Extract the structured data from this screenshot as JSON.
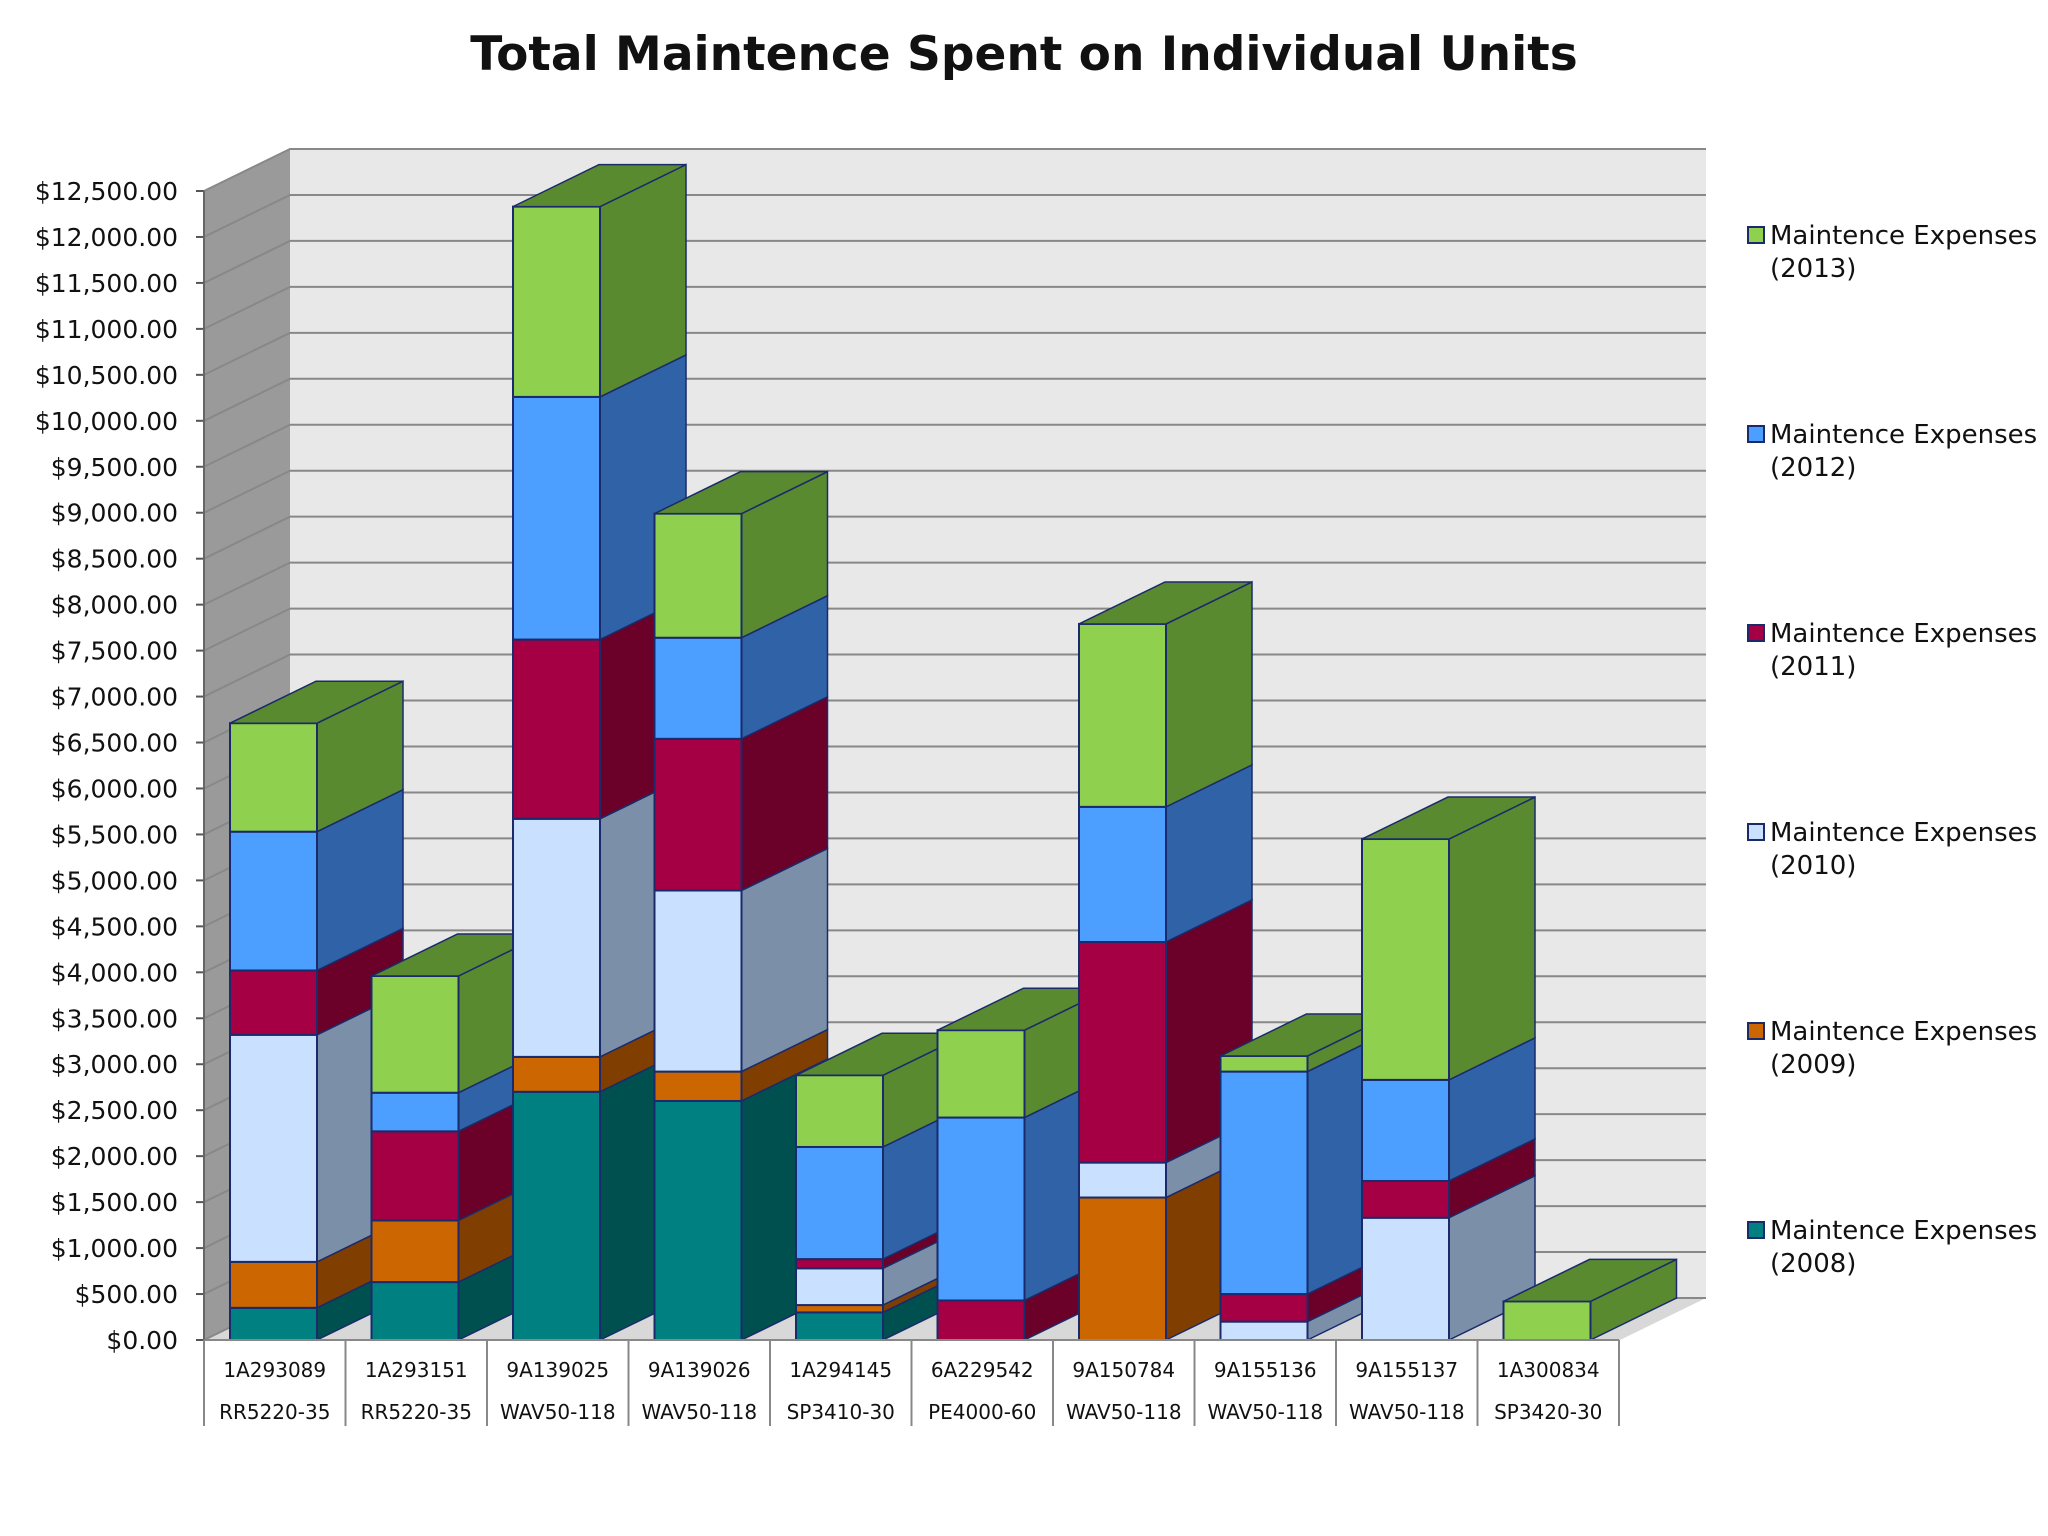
{
  "chart_data": {
    "type": "bar",
    "stacked": true,
    "three_d": true,
    "title": "Total Maintence Spent on Individual Units",
    "xlabel": "",
    "ylabel": "",
    "ylim": [
      0,
      12500
    ],
    "ytick_step": 500,
    "ytick_labels": [
      "$0.00",
      "$500.00",
      "$1,000.00",
      "$1,500.00",
      "$2,000.00",
      "$2,500.00",
      "$3,000.00",
      "$3,500.00",
      "$4,000.00",
      "$4,500.00",
      "$5,000.00",
      "$5,500.00",
      "$6,000.00",
      "$6,500.00",
      "$7,000.00",
      "$7,500.00",
      "$8,000.00",
      "$8,500.00",
      "$9,000.00",
      "$9,500.00",
      "$10,000.00",
      "$10,500.00",
      "$11,000.00",
      "$11,500.00",
      "$12,000.00",
      "$12,500.00"
    ],
    "grid": true,
    "legend_position": "right",
    "categories": [
      {
        "serial": "1A293089",
        "model": "RR5220-35"
      },
      {
        "serial": "1A293151",
        "model": "RR5220-35"
      },
      {
        "serial": "9A139025",
        "model": "WAV50-118"
      },
      {
        "serial": "9A139026",
        "model": "WAV50-118"
      },
      {
        "serial": "1A294145",
        "model": "SP3410-30"
      },
      {
        "serial": "6A229542",
        "model": "PE4000-60"
      },
      {
        "serial": "9A150784",
        "model": "WAV50-118"
      },
      {
        "serial": "9A155136",
        "model": "WAV50-118"
      },
      {
        "serial": "9A155137",
        "model": "WAV50-118"
      },
      {
        "serial": "1A300834",
        "model": "SP3420-30"
      }
    ],
    "series": [
      {
        "name": "Maintence Expenses (2008)",
        "legend_lines": [
          "Maintence Expenses",
          "(2008)"
        ],
        "color": "#008080",
        "side_color": "#005050",
        "values": [
          350,
          630,
          2700,
          2600,
          300,
          0,
          0,
          0,
          0,
          0
        ]
      },
      {
        "name": "Maintence Expenses (2009)",
        "legend_lines": [
          "Maintence Expenses",
          "(2009)"
        ],
        "color": "#cc6600",
        "side_color": "#803f00",
        "values": [
          500,
          670,
          380,
          320,
          80,
          0,
          1550,
          0,
          0,
          0
        ]
      },
      {
        "name": "Maintence Expenses (2010)",
        "legend_lines": [
          "Maintence Expenses",
          "(2010)"
        ],
        "color": "#c9e0ff",
        "side_color": "#7b8fa8",
        "values": [
          2470,
          0,
          2590,
          1970,
          400,
          0,
          380,
          200,
          1330,
          0
        ]
      },
      {
        "name": "Maintence Expenses (2011)",
        "legend_lines": [
          "Maintence Expenses",
          "(2011)"
        ],
        "color": "#a50044",
        "side_color": "#6b0028",
        "values": [
          700,
          970,
          1950,
          1650,
          100,
          430,
          2400,
          300,
          400,
          0
        ]
      },
      {
        "name": "Maintence Expenses (2012)",
        "legend_lines": [
          "Maintence Expenses",
          "(2012)"
        ],
        "color": "#4d9fff",
        "side_color": "#2f62a6",
        "values": [
          1510,
          420,
          2640,
          1100,
          1220,
          1990,
          1470,
          2420,
          1100,
          0
        ]
      },
      {
        "name": "Maintence Expenses (2013)",
        "legend_lines": [
          "Maintence Expenses",
          "(2013)"
        ],
        "color": "#8fd14f",
        "side_color": "#5a8a30",
        "values": [
          1180,
          1270,
          2070,
          1350,
          780,
          950,
          1990,
          170,
          2620,
          420
        ]
      }
    ],
    "legend_order": [
      "Maintence Expenses (2013)",
      "Maintence Expenses (2012)",
      "Maintence Expenses (2011)",
      "Maintence Expenses (2010)",
      "Maintence Expenses (2009)",
      "Maintence Expenses (2008)"
    ]
  }
}
